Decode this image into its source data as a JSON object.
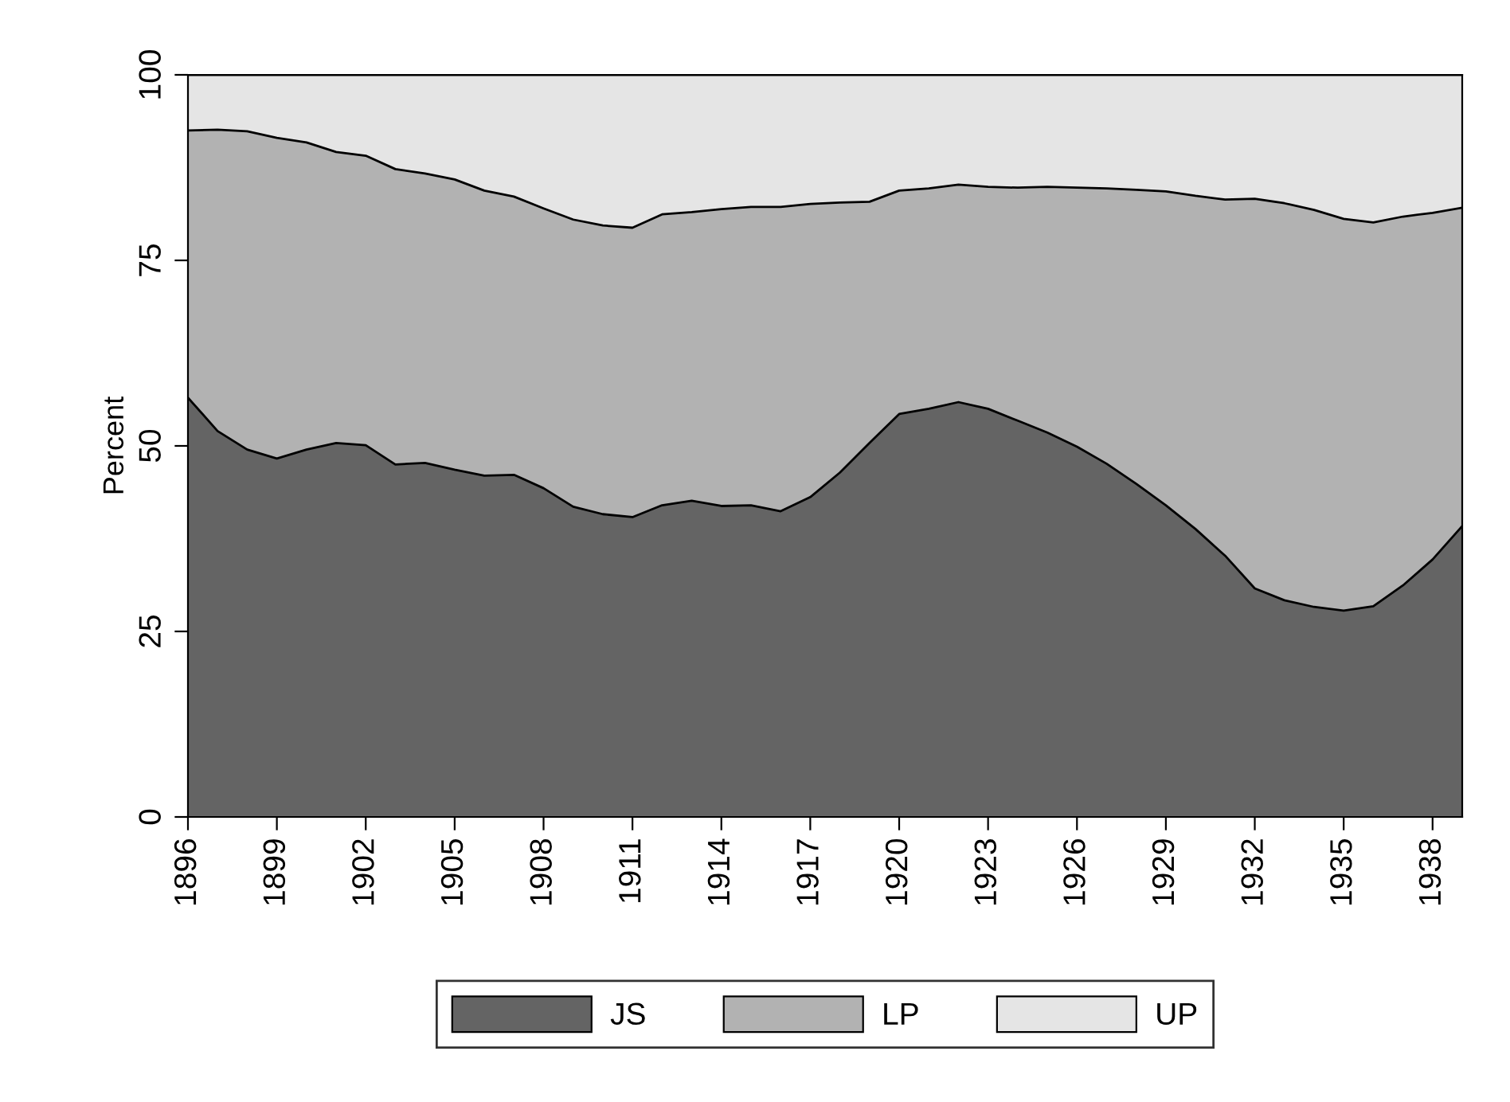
{
  "chart_data": {
    "type": "area",
    "stacked": true,
    "ylabel": "Percent",
    "x": [
      1896,
      1897,
      1898,
      1899,
      1900,
      1901,
      1902,
      1903,
      1904,
      1905,
      1906,
      1907,
      1908,
      1909,
      1910,
      1911,
      1912,
      1913,
      1914,
      1915,
      1916,
      1917,
      1918,
      1919,
      1920,
      1921,
      1922,
      1923,
      1924,
      1925,
      1926,
      1927,
      1928,
      1929,
      1930,
      1931,
      1932,
      1933,
      1934,
      1935,
      1936,
      1937,
      1938,
      1939
    ],
    "series": [
      {
        "name": "JS",
        "color": "#646464",
        "values": [
          56.5,
          52,
          49.5,
          48.3,
          49.5,
          50.4,
          50.1,
          47.5,
          47.7,
          46.8,
          46,
          46.1,
          44.3,
          41.8,
          40.8,
          40.4,
          42,
          42.6,
          41.9,
          42,
          41.2,
          43.1,
          46.4,
          50.4,
          54.3,
          55,
          55.9,
          55,
          53.4,
          51.8,
          49.9,
          47.6,
          44.9,
          42,
          38.8,
          35.2,
          30.8,
          29.2,
          28.3,
          27.8,
          28.4,
          31.2,
          34.7,
          39.2
        ]
      },
      {
        "name": "LP",
        "color": "#b2b2b2",
        "values": [
          36.0,
          40.6,
          42.9,
          43.2,
          41.4,
          39.2,
          39.0,
          39.8,
          39.0,
          39.1,
          38.4,
          37.5,
          37.7,
          38.7,
          38.9,
          39.0,
          39.2,
          38.9,
          40.0,
          40.2,
          41.0,
          39.5,
          36.4,
          32.5,
          30.1,
          29.7,
          29.3,
          29.9,
          31.4,
          33.1,
          34.9,
          37.1,
          39.6,
          42.3,
          44.9,
          48.0,
          52.5,
          53.5,
          53.5,
          52.8,
          51.7,
          49.7,
          46.7,
          42.9
        ]
      },
      {
        "name": "UP",
        "color": "#e5e5e5",
        "values": [
          7.5,
          7.4,
          7.6,
          8.5,
          9.1,
          10.4,
          10.9,
          12.7,
          13.3,
          14.1,
          15.6,
          16.4,
          18,
          19.5,
          20.3,
          20.6,
          18.8,
          18.5,
          18.1,
          17.8,
          17.8,
          17.4,
          17.2,
          17.1,
          15.6,
          15.3,
          14.8,
          15.1,
          15.2,
          15.1,
          15.2,
          15.3,
          15.5,
          15.7,
          16.3,
          16.8,
          16.7,
          17.3,
          18.2,
          19.4,
          19.9,
          19.1,
          18.6,
          17.9
        ]
      }
    ],
    "xlim": [
      1896,
      1939
    ],
    "xticks": [
      1896,
      1899,
      1902,
      1905,
      1908,
      1911,
      1914,
      1917,
      1920,
      1923,
      1926,
      1929,
      1932,
      1935,
      1938
    ],
    "ylim": [
      0,
      100
    ],
    "yticks": [
      0,
      25,
      50,
      75,
      100
    ],
    "legend": "bottom"
  }
}
